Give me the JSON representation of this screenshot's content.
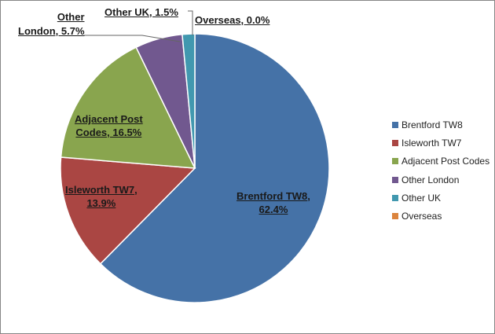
{
  "chart_data": {
    "type": "pie",
    "start_angle": "top",
    "direction": "clockwise",
    "slices": [
      {
        "name": "Brentford TW8",
        "value": 62.4,
        "label": "Brentford TW8, 62.4%",
        "color": "#4572A7"
      },
      {
        "name": "Isleworth TW7",
        "value": 13.9,
        "label": "Isleworth TW7, 13.9%",
        "color": "#AA4643"
      },
      {
        "name": "Adjacent Post Codes",
        "value": 16.5,
        "label": "Adjacent Post Codes, 16.5%",
        "color": "#89A54E"
      },
      {
        "name": "Other London",
        "value": 5.7,
        "label": "Other London, 5.7%",
        "color": "#71588F"
      },
      {
        "name": "Other UK",
        "value": 1.5,
        "label": "Other UK, 1.5%",
        "color": "#4198AF"
      },
      {
        "name": "Overseas",
        "value": 0.0,
        "label": "Overseas, 0.0%",
        "color": "#DB843D"
      }
    ],
    "legend": "right"
  }
}
